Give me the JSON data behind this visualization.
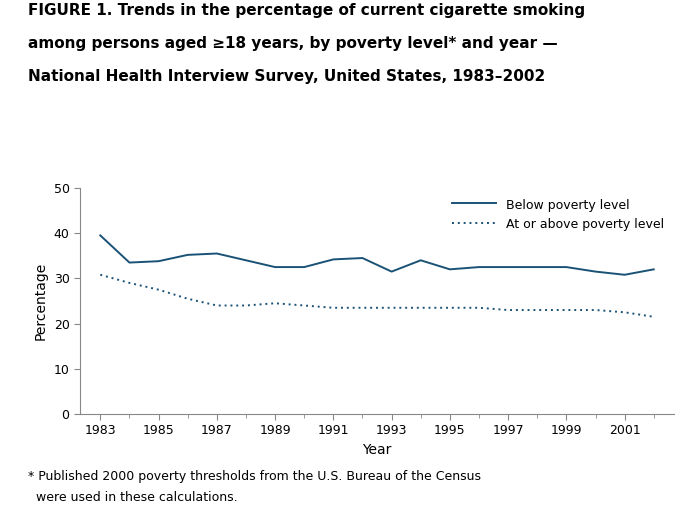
{
  "title_line1": "FIGURE 1. Trends in the percentage of current cigarette smoking",
  "title_line2": "among persons aged ≥18 years, by poverty level* and year —",
  "title_line3": "National Health Interview Survey, United States, 1983–2002",
  "footnote_line1": "* Published 2000 poverty thresholds from the U.S. Bureau of the Census",
  "footnote_line2": "  were used in these calculations.",
  "xlabel": "Year",
  "ylabel": "Percentage",
  "ylim": [
    0,
    50
  ],
  "yticks": [
    0,
    10,
    20,
    30,
    40,
    50
  ],
  "line_color": "#1a5276",
  "years": [
    1983,
    1984,
    1985,
    1986,
    1987,
    1988,
    1989,
    1990,
    1991,
    1992,
    1993,
    1994,
    1995,
    1996,
    1997,
    1998,
    1999,
    2000,
    2001,
    2002
  ],
  "below_poverty": [
    39.5,
    33.5,
    33.8,
    35.2,
    35.5,
    34.0,
    32.5,
    32.5,
    34.2,
    34.5,
    31.5,
    34.0,
    32.0,
    32.5,
    32.5,
    32.5,
    32.5,
    31.5,
    30.8,
    32.0
  ],
  "above_poverty": [
    30.8,
    29.0,
    27.5,
    25.5,
    24.0,
    24.0,
    24.5,
    24.0,
    23.5,
    23.5,
    23.5,
    23.5,
    23.5,
    23.5,
    23.0,
    23.0,
    23.0,
    23.0,
    22.5,
    21.5
  ],
  "xticks": [
    1983,
    1985,
    1987,
    1989,
    1991,
    1993,
    1995,
    1997,
    1999,
    2001
  ],
  "legend_below": "Below poverty level",
  "legend_above": "At or above poverty level",
  "title_fontsize": 11,
  "tick_fontsize": 9,
  "label_fontsize": 10,
  "footnote_fontsize": 9
}
